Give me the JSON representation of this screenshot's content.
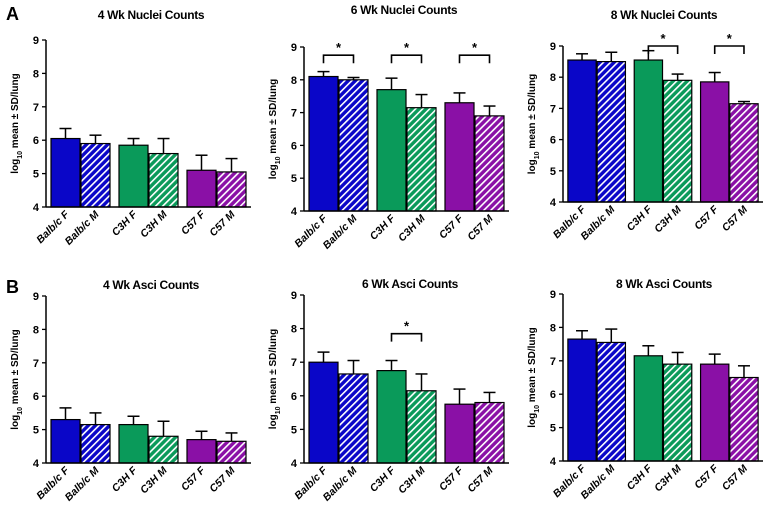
{
  "figure": {
    "panel_letters": [
      "A",
      "B"
    ]
  },
  "colors": {
    "Balb/c": "#0a06c8",
    "C3H": "#0a9a5a",
    "C57": "#8a10a6",
    "error_bar": "#000000",
    "axis": "#000000"
  },
  "chart_data": [
    {
      "type": "bar",
      "title": "4 Wk Nuclei Counts",
      "ylabel_main": "log",
      "ylabel_sub": "10",
      "ylabel_rest": " mean ± SD/lung",
      "ylim": [
        4,
        9
      ],
      "yticks": [
        4,
        5,
        6,
        7,
        8,
        9
      ],
      "categories": [
        "Balb/c F",
        "Balb/c M",
        "C3H F",
        "C3H M",
        "C57 F",
        "C57 M"
      ],
      "strain": [
        "Balb/c",
        "Balb/c",
        "C3H",
        "C3H",
        "C57",
        "C57"
      ],
      "pattern": [
        "solid",
        "hatched",
        "solid",
        "hatched",
        "solid",
        "hatched"
      ],
      "values": [
        6.05,
        5.9,
        5.85,
        5.6,
        5.1,
        5.05
      ],
      "errors": [
        0.3,
        0.25,
        0.2,
        0.45,
        0.45,
        0.4
      ],
      "significance": []
    },
    {
      "type": "bar",
      "title": "6 Wk Nuclei Counts",
      "ylabel_main": "log",
      "ylabel_sub": "10",
      "ylabel_rest": " mean ± SD/lung",
      "ylim": [
        4,
        9
      ],
      "yticks": [
        4,
        5,
        6,
        7,
        8,
        9
      ],
      "categories": [
        "Balb/c F",
        "Balb/c M",
        "C3H F",
        "C3H M",
        "C57 F",
        "C57 M"
      ],
      "strain": [
        "Balb/c",
        "Balb/c",
        "C3H",
        "C3H",
        "C57",
        "C57"
      ],
      "pattern": [
        "solid",
        "hatched",
        "solid",
        "hatched",
        "solid",
        "hatched"
      ],
      "values": [
        8.1,
        8.0,
        7.7,
        7.15,
        7.3,
        6.9
      ],
      "errors": [
        0.15,
        0.07,
        0.35,
        0.4,
        0.3,
        0.3
      ],
      "significance": [
        {
          "pair": [
            0,
            1
          ],
          "label": "*",
          "level": 8.75
        },
        {
          "pair": [
            2,
            3
          ],
          "label": "*",
          "level": 8.75
        },
        {
          "pair": [
            4,
            5
          ],
          "label": "*",
          "level": 8.75
        }
      ]
    },
    {
      "type": "bar",
      "title": "8 Wk Nuclei Counts",
      "ylabel_main": "log",
      "ylabel_sub": "10",
      "ylabel_rest": " mean ± SD/lung",
      "ylim": [
        4,
        9
      ],
      "yticks": [
        4,
        5,
        6,
        7,
        8,
        9
      ],
      "categories": [
        "Balb/c F",
        "Balb/c M",
        "C3H F",
        "C3H M",
        "C57 F",
        "C57 M"
      ],
      "strain": [
        "Balb/c",
        "Balb/c",
        "C3H",
        "C3H",
        "C57",
        "C57"
      ],
      "pattern": [
        "solid",
        "hatched",
        "solid",
        "hatched",
        "solid",
        "hatched"
      ],
      "values": [
        8.55,
        8.5,
        8.55,
        7.9,
        7.85,
        7.15
      ],
      "errors": [
        0.2,
        0.3,
        0.3,
        0.2,
        0.3,
        0.07
      ],
      "significance": [
        {
          "pair": [
            2,
            3
          ],
          "label": "*",
          "level": 9.0
        },
        {
          "pair": [
            4,
            5
          ],
          "label": "*",
          "level": 9.0
        }
      ]
    },
    {
      "type": "bar",
      "title": "4 Wk Asci Counts",
      "ylabel_main": "log",
      "ylabel_sub": "10",
      "ylabel_rest": " mean ± SD/lung",
      "ylim": [
        4,
        9
      ],
      "yticks": [
        4,
        5,
        6,
        7,
        8,
        9
      ],
      "categories": [
        "Balb/c F",
        "Balb/c M",
        "C3H F",
        "C3H M",
        "C57 F",
        "C57 M"
      ],
      "strain": [
        "Balb/c",
        "Balb/c",
        "C3H",
        "C3H",
        "C57",
        "C57"
      ],
      "pattern": [
        "solid",
        "hatched",
        "solid",
        "hatched",
        "solid",
        "hatched"
      ],
      "values": [
        5.3,
        5.15,
        5.15,
        4.8,
        4.7,
        4.65
      ],
      "errors": [
        0.35,
        0.35,
        0.25,
        0.45,
        0.25,
        0.25
      ],
      "significance": []
    },
    {
      "type": "bar",
      "title": "6 Wk Asci Counts",
      "ylabel_main": "log",
      "ylabel_sub": "10",
      "ylabel_rest": " mean ± SD/lung",
      "ylim": [
        4,
        9
      ],
      "yticks": [
        4,
        5,
        6,
        7,
        8,
        9
      ],
      "categories": [
        "Balb/c F",
        "Balb/c M",
        "C3H F",
        "C3H M",
        "C57 F",
        "C57 M"
      ],
      "strain": [
        "Balb/c",
        "Balb/c",
        "C3H",
        "C3H",
        "C57",
        "C57"
      ],
      "pattern": [
        "solid",
        "hatched",
        "solid",
        "hatched",
        "solid",
        "hatched"
      ],
      "values": [
        7.0,
        6.65,
        6.75,
        6.15,
        5.75,
        5.8
      ],
      "errors": [
        0.3,
        0.4,
        0.3,
        0.5,
        0.45,
        0.3
      ],
      "significance": [
        {
          "pair": [
            2,
            3
          ],
          "label": "*",
          "level": 7.85
        }
      ]
    },
    {
      "type": "bar",
      "title": "8 Wk Asci Counts",
      "ylabel_main": "log",
      "ylabel_sub": "10",
      "ylabel_rest": " mean ± SD/lung",
      "ylim": [
        4,
        9
      ],
      "yticks": [
        4,
        5,
        6,
        7,
        8,
        9
      ],
      "categories": [
        "Balb/c F",
        "Balb/c M",
        "C3H F",
        "C3H M",
        "C57 F",
        "C57 M"
      ],
      "strain": [
        "Balb/c",
        "Balb/c",
        "C3H",
        "C3H",
        "C57",
        "C57"
      ],
      "pattern": [
        "solid",
        "hatched",
        "solid",
        "hatched",
        "solid",
        "hatched"
      ],
      "values": [
        7.65,
        7.55,
        7.15,
        6.9,
        6.9,
        6.5
      ],
      "errors": [
        0.25,
        0.4,
        0.3,
        0.35,
        0.3,
        0.35
      ],
      "significance": []
    }
  ]
}
